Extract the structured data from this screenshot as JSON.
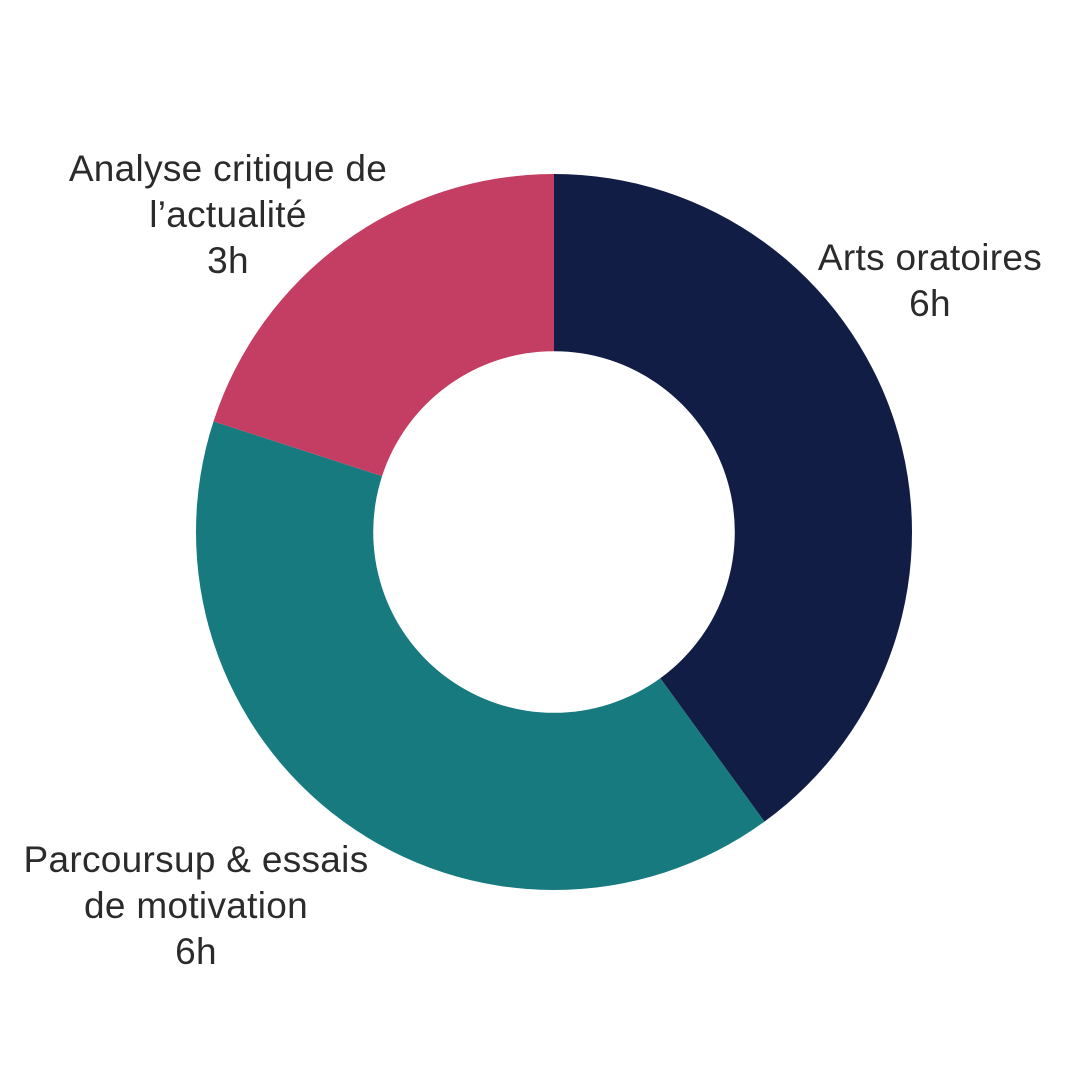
{
  "page": {
    "background": "#ffffff",
    "text_color": "#2b2b2b"
  },
  "chart_data": {
    "type": "pie",
    "variant": "donut",
    "title": "",
    "unit": "h",
    "total": 15,
    "categories": [
      "Arts oratoires",
      "Parcoursup & essais de motivation",
      "Analyse critique de l’actualité"
    ],
    "values": [
      6,
      6,
      3
    ],
    "value_labels": [
      "6h",
      "6h",
      "3h"
    ],
    "colors": [
      "#121D45",
      "#177A7E",
      "#C43D63"
    ],
    "start_angle_deg": 0,
    "direction": "clockwise",
    "inner_radius_ratio": 0.505,
    "hole_color": "#ffffff",
    "legend_position": "none",
    "labels_position": "outside"
  },
  "annotations": {
    "arts": {
      "lines": [
        "Arts oratoires",
        "6h"
      ]
    },
    "analyse": {
      "lines": [
        "Analyse critique de",
        "l’actualité",
        "3h"
      ]
    },
    "parcoursup": {
      "lines": [
        "Parcoursup & essais",
        "de motivation",
        "6h"
      ]
    }
  }
}
